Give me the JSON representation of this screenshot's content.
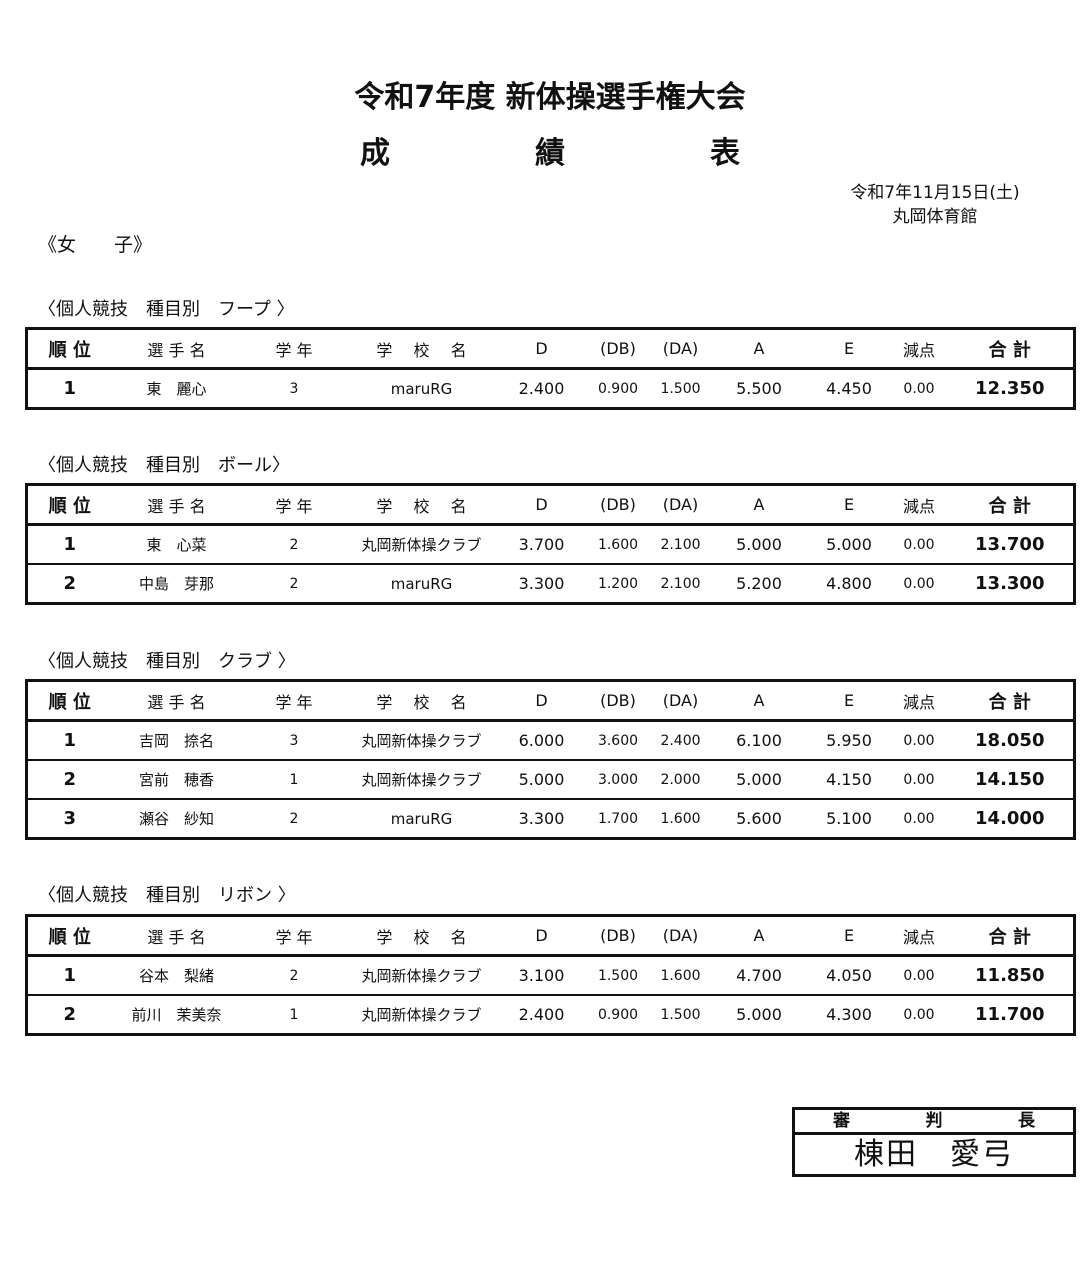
{
  "title": "令和7年度 新体操選手権大会",
  "subtitle": [
    "成",
    "績",
    "表"
  ],
  "date": "令和7年11月15日(土)",
  "venue": "丸岡体育館",
  "category": "《女　　子》",
  "columns": [
    "順 位",
    "選 手 名",
    "学 年",
    "学　 校　 名",
    "D",
    "(DB)",
    "(DA)",
    "A",
    "E",
    "減点",
    "合 計"
  ],
  "sections": [
    {
      "label": "〈個人競技　種目別　フープ 〉",
      "rows": [
        [
          "1",
          "東　麗心",
          "3",
          "maruRG",
          "2.400",
          "0.900",
          "1.500",
          "5.500",
          "4.450",
          "0.00",
          "12.350"
        ]
      ]
    },
    {
      "label": "〈個人競技　種目別　ボール〉",
      "rows": [
        [
          "1",
          "東　心菜",
          "2",
          "丸岡新体操クラブ",
          "3.700",
          "1.600",
          "2.100",
          "5.000",
          "5.000",
          "0.00",
          "13.700"
        ],
        [
          "2",
          "中島　芽那",
          "2",
          "maruRG",
          "3.300",
          "1.200",
          "2.100",
          "5.200",
          "4.800",
          "0.00",
          "13.300"
        ]
      ]
    },
    {
      "label": "〈個人競技　種目別　クラブ 〉",
      "rows": [
        [
          "1",
          "吉岡　捺名",
          "3",
          "丸岡新体操クラブ",
          "6.000",
          "3.600",
          "2.400",
          "6.100",
          "5.950",
          "0.00",
          "18.050"
        ],
        [
          "2",
          "宮前　穂香",
          "1",
          "丸岡新体操クラブ",
          "5.000",
          "3.000",
          "2.000",
          "5.000",
          "4.150",
          "0.00",
          "14.150"
        ],
        [
          "3",
          "瀬谷　紗知",
          "2",
          "maruRG",
          "3.300",
          "1.700",
          "1.600",
          "5.600",
          "5.100",
          "0.00",
          "14.000"
        ]
      ]
    },
    {
      "label": "〈個人競技　種目別　リボン 〉",
      "rows": [
        [
          "1",
          "谷本　梨緒",
          "2",
          "丸岡新体操クラブ",
          "3.100",
          "1.500",
          "1.600",
          "4.700",
          "4.050",
          "0.00",
          "11.850"
        ],
        [
          "2",
          "前川　茉美奈",
          "1",
          "丸岡新体操クラブ",
          "2.400",
          "0.900",
          "1.500",
          "5.000",
          "4.300",
          "0.00",
          "11.700"
        ]
      ]
    }
  ],
  "judge": {
    "title": [
      "審",
      "判",
      "長"
    ],
    "name": "棟田　愛弓"
  }
}
